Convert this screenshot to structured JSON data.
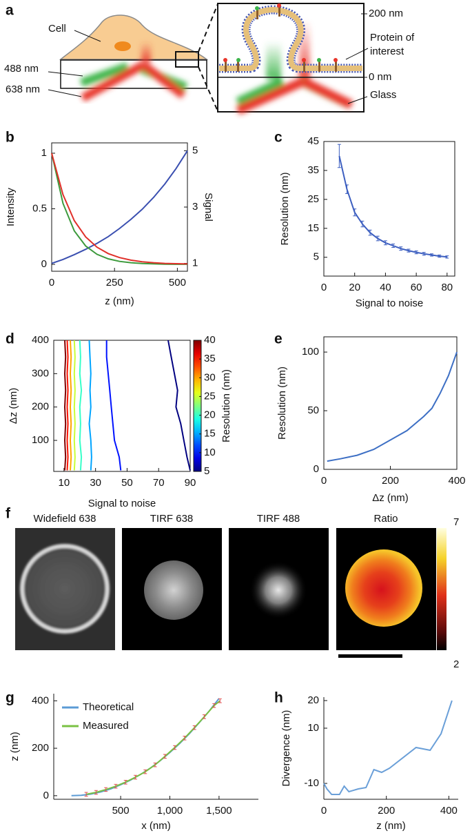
{
  "panel_labels": [
    "a",
    "b",
    "c",
    "d",
    "e",
    "f",
    "g",
    "h"
  ],
  "schematic": {
    "cell": "Cell",
    "wavelength_488": "488 nm",
    "wavelength_638": "638 nm",
    "height_top": "200 nm",
    "protein": [
      "Protein of",
      "interest"
    ],
    "height_bottom": "0 nm",
    "glass": "Glass"
  },
  "images": {
    "titles": [
      "Widefield 638",
      "TIRF 638",
      "TIRF 488",
      "Ratio"
    ],
    "colorbar_max": 7,
    "colorbar_min": 2
  },
  "chart_data": [
    {
      "type": "line",
      "xlabel": "z (nm)",
      "ylabel": "Intensity",
      "y2label": "Signal",
      "frame": true,
      "x": [
        0,
        45,
        90,
        135,
        180,
        225,
        270,
        315,
        360,
        405,
        450,
        495,
        540
      ],
      "xlim": [
        0,
        540
      ],
      "xticks": [
        0,
        250,
        500
      ],
      "ylim": [
        -0.062,
        1.093
      ],
      "yticks": [
        0,
        0.5,
        1
      ],
      "y2lim": [
        0.72,
        5.28
      ],
      "y2ticks": [
        1,
        3,
        5
      ],
      "series": [
        {
          "color": "#3a4fb0",
          "axis": "y2",
          "values": [
            1,
            1.14,
            1.31,
            1.5,
            1.71,
            1.95,
            2.24,
            2.56,
            2.92,
            3.34,
            3.82,
            4.37,
            5
          ]
        },
        {
          "color": "#3c9a3c",
          "values": [
            1,
            0.549,
            0.301,
            0.165,
            0.091,
            0.05,
            0.027,
            0.015,
            0.008,
            0.005,
            0.002,
            0.001,
            0.001
          ]
        },
        {
          "color": "#e0302a",
          "values": [
            1,
            0.628,
            0.394,
            0.247,
            0.155,
            0.097,
            0.061,
            0.038,
            0.024,
            0.015,
            0.009,
            0.006,
            0.004
          ]
        }
      ]
    },
    {
      "type": "line",
      "xlabel": "Signal to noise",
      "ylabel": "Resolution (nm)",
      "frame": true,
      "x": [
        10,
        15,
        20,
        25,
        30,
        35,
        40,
        45,
        50,
        55,
        60,
        65,
        70,
        75,
        80
      ],
      "xlim": [
        0,
        85
      ],
      "xticks": [
        0,
        20,
        40,
        60,
        80
      ],
      "ylim": [
        -1.5,
        45
      ],
      "yticks": [
        5,
        15,
        25,
        35,
        45
      ],
      "series": [
        {
          "color": "#3d5fc0",
          "values": [
            40,
            28.5,
            20.5,
            16.5,
            13.5,
            11.5,
            10,
            9,
            8,
            7.3,
            6.7,
            6.2,
            5.8,
            5.4,
            5.1
          ],
          "errors": [
            4,
            1.5,
            1.2,
            1,
            0.9,
            0.8,
            0.7,
            0.6,
            0.6,
            0.5,
            0.5,
            0.5,
            0.4,
            0.4,
            0.4
          ]
        }
      ]
    },
    {
      "type": "contour",
      "xlabel": "Signal to noise",
      "ylabel": "Δz (nm)",
      "clabel": "Resolution (nm)",
      "frame": true,
      "xlim": [
        3.5,
        90
      ],
      "xticks": [
        10,
        30,
        50,
        70,
        90
      ],
      "ylim": [
        7,
        400
      ],
      "yticks": [
        100,
        200,
        300,
        400
      ],
      "clim": [
        5,
        40
      ],
      "cticks": [
        5,
        10,
        15,
        20,
        25,
        30,
        35,
        40
      ],
      "y": [
        400,
        350,
        300,
        250,
        200,
        150,
        100,
        50,
        10
      ],
      "contours": [
        {
          "level": 5,
          "x": [
            76,
            78,
            80,
            82,
            81,
            84,
            86,
            88,
            90
          ]
        },
        {
          "level": 10,
          "x": [
            37,
            37,
            38,
            39,
            40,
            41,
            42,
            45,
            46
          ]
        },
        {
          "level": 15,
          "x": [
            26,
            26.5,
            27,
            26.5,
            27,
            26,
            27,
            27.5,
            27
          ]
        },
        {
          "level": 20,
          "x": [
            20,
            20.5,
            20,
            21,
            20,
            20.5,
            20,
            21,
            20.5
          ]
        },
        {
          "level": 25,
          "x": [
            16.5,
            17,
            16.5,
            17,
            16.5,
            17,
            16.5,
            17,
            16.5
          ]
        },
        {
          "level": 30,
          "x": [
            14,
            14.5,
            14,
            14.5,
            14,
            14.5,
            14,
            14.5,
            14
          ]
        },
        {
          "level": 35,
          "x": [
            12,
            12.5,
            12,
            12.5,
            12,
            12.5,
            12,
            12.5,
            12
          ]
        },
        {
          "level": 40,
          "x": [
            10.5,
            11,
            10.5,
            11,
            10.5,
            11,
            10.5,
            11,
            10.5
          ]
        }
      ]
    },
    {
      "type": "line",
      "xlabel": "Δz (nm)",
      "ylabel": "Resolution (nm)",
      "frame": true,
      "x": [
        10,
        50,
        100,
        150,
        200,
        250,
        300,
        325,
        350,
        375,
        400
      ],
      "xlim": [
        0,
        400
      ],
      "xticks": [
        0,
        200,
        400
      ],
      "ylim": [
        0,
        113
      ],
      "yticks": [
        0,
        50,
        100
      ],
      "series": [
        {
          "color": "#3d6fc4",
          "values": [
            7,
            9,
            12,
            17,
            25,
            33,
            45,
            52,
            65,
            80,
            100
          ]
        }
      ]
    },
    {
      "type": "line",
      "xlabel": "x (nm)",
      "ylabel": "z (nm)",
      "frame": false,
      "legend": "upper left",
      "xlim": [
        -180,
        1900
      ],
      "xticks": [
        500,
        {
          "value": 1000,
          "label": "1,000"
        },
        {
          "value": 1500,
          "label": "1,500"
        }
      ],
      "ylim": [
        -15,
        430
      ],
      "yticks": [
        0,
        200,
        400
      ],
      "series": [
        {
          "name": "Theoretical",
          "color": "#5b9bd5",
          "x": [
            0,
            100,
            200,
            300,
            400,
            500,
            600,
            700,
            800,
            900,
            1000,
            1100,
            1200,
            1300,
            1400,
            1500
          ],
          "values": [
            0,
            2,
            7,
            16,
            29,
            46,
            66,
            89,
            116,
            147,
            182,
            220,
            262,
            308,
            357,
            410
          ]
        },
        {
          "name": "Measured",
          "color": "#7ac143",
          "error_color": "#e05050",
          "x": [
            150,
            250,
            350,
            450,
            550,
            650,
            750,
            850,
            950,
            1050,
            1150,
            1250,
            1350,
            1450,
            1510
          ],
          "values": [
            6,
            14,
            26,
            40,
            57,
            78,
            101,
            130,
            166,
            203,
            243,
            287,
            333,
            380,
            400
          ],
          "errors": [
            8,
            8,
            8,
            8,
            8,
            8,
            8,
            8,
            8,
            8,
            8,
            8,
            8,
            8,
            8
          ]
        }
      ]
    },
    {
      "type": "line",
      "xlabel": "z (nm)",
      "ylabel": "Divergence (nm)",
      "frame": false,
      "x": [
        0,
        10,
        25,
        50,
        65,
        80,
        110,
        135,
        160,
        185,
        210,
        295,
        340,
        375,
        410
      ],
      "xlim": [
        0,
        430
      ],
      "xticks": [
        0,
        200,
        400
      ],
      "ylim": [
        -15.75,
        21.25
      ],
      "yticks": [
        -10,
        10,
        20
      ],
      "series": [
        {
          "color": "#6a9fd8",
          "values": [
            -10,
            -12,
            -14,
            -14,
            -11,
            -13,
            -12,
            -11.5,
            -5,
            -6,
            -4.5,
            3,
            2,
            8,
            20
          ]
        }
      ]
    }
  ]
}
